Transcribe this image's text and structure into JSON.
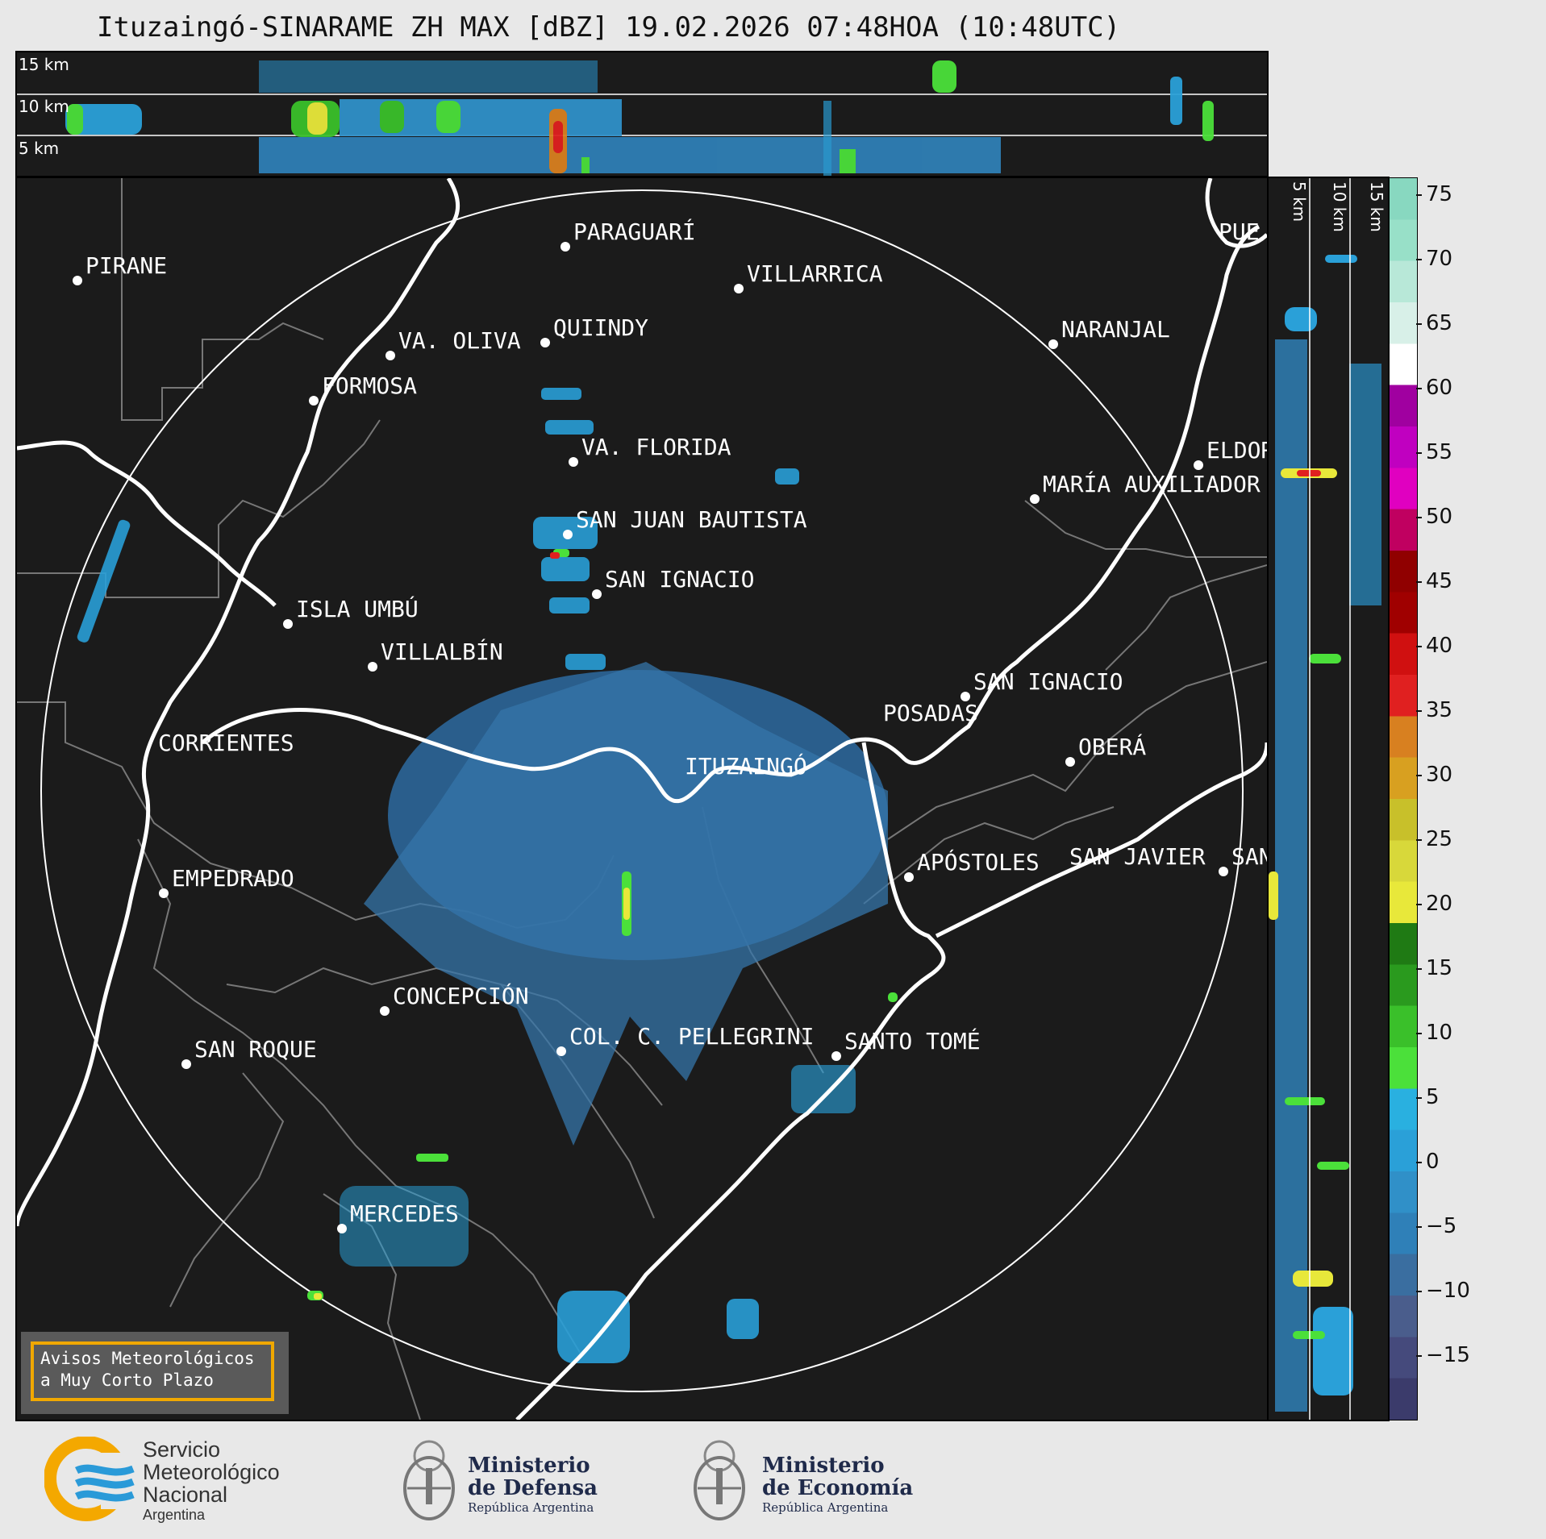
{
  "title": "Ituzaingó-SINARAME ZH MAX [dBZ] 19.02.2026 07:48HOA (10:48UTC)",
  "altitude_labels": [
    "15 km",
    "10 km",
    "5 km"
  ],
  "side_altitude_labels": [
    "5 km",
    "10 km",
    "15 km"
  ],
  "colorbar": {
    "ticks": [
      "75",
      "70",
      "65",
      "60",
      "55",
      "50",
      "45",
      "40",
      "35",
      "30",
      "25",
      "20",
      "15",
      "10",
      "5",
      "0",
      "−5",
      "−10",
      "−15"
    ],
    "colors": [
      "#3b3b6b",
      "#454a7c",
      "#4a5d8c",
      "#3a6ea0",
      "#2f80b8",
      "#3090c8",
      "#2aa0d8",
      "#29b0e0",
      "#4be03a",
      "#3ac02a",
      "#2a9a1e",
      "#1f7a14",
      "#e8e83a",
      "#d8d83a",
      "#c8c02a",
      "#d8a020",
      "#d88020",
      "#e02020",
      "#d01010",
      "#a00000",
      "#900000",
      "#c00060",
      "#e000c0",
      "#c000c0",
      "#a000a0",
      "#ffffff",
      "#d8f0e8",
      "#b8e8d8",
      "#98e0c8",
      "#88d8c0"
    ],
    "unit": "dBZ"
  },
  "cities": [
    {
      "name": "PARAGUARÍ"
    },
    {
      "name": "VILLARRICA"
    },
    {
      "name": "PIRANE"
    },
    {
      "name": "QUIINDY"
    },
    {
      "name": "VA. OLIVA"
    },
    {
      "name": "NARANJAL"
    },
    {
      "name": "FORMOSA"
    },
    {
      "name": "VA. FLORIDA"
    },
    {
      "name": "ELDOR"
    },
    {
      "name": "MARÍA AUXILIADOR"
    },
    {
      "name": "SAN JUAN BAUTISTA"
    },
    {
      "name": "SAN IGNACIO"
    },
    {
      "name": "ISLA UMBÚ"
    },
    {
      "name": "VILLALBÍN"
    },
    {
      "name": "SAN IGNACIO"
    },
    {
      "name": "POSADAS"
    },
    {
      "name": "CORRIENTES"
    },
    {
      "name": "ITUZAINGÓ"
    },
    {
      "name": "OBERÁ"
    },
    {
      "name": "APÓSTOLES"
    },
    {
      "name": "SAN JAVIER"
    },
    {
      "name": "SAN"
    },
    {
      "name": "EMPEDRADO"
    },
    {
      "name": "CONCEPCIÓN"
    },
    {
      "name": "COL. C. PELLEGRINI"
    },
    {
      "name": "SANTO TOMÉ"
    },
    {
      "name": "SAN ROQUE"
    },
    {
      "name": "MERCEDES"
    },
    {
      "name": "PUE"
    }
  ],
  "warning": {
    "line1": "Avisos Meteorológicos",
    "line2": "a Muy Corto Plazo"
  },
  "logos": {
    "smn": {
      "line1": "Servicio",
      "line2": "Meteorológico",
      "line3": "Nacional",
      "line4": "Argentina"
    },
    "defensa": {
      "line1": "Ministerio",
      "line2": "de Defensa",
      "line3": "República Argentina"
    },
    "economia": {
      "line1": "Ministerio",
      "line2": "de Economía",
      "line3": "República Argentina"
    }
  }
}
